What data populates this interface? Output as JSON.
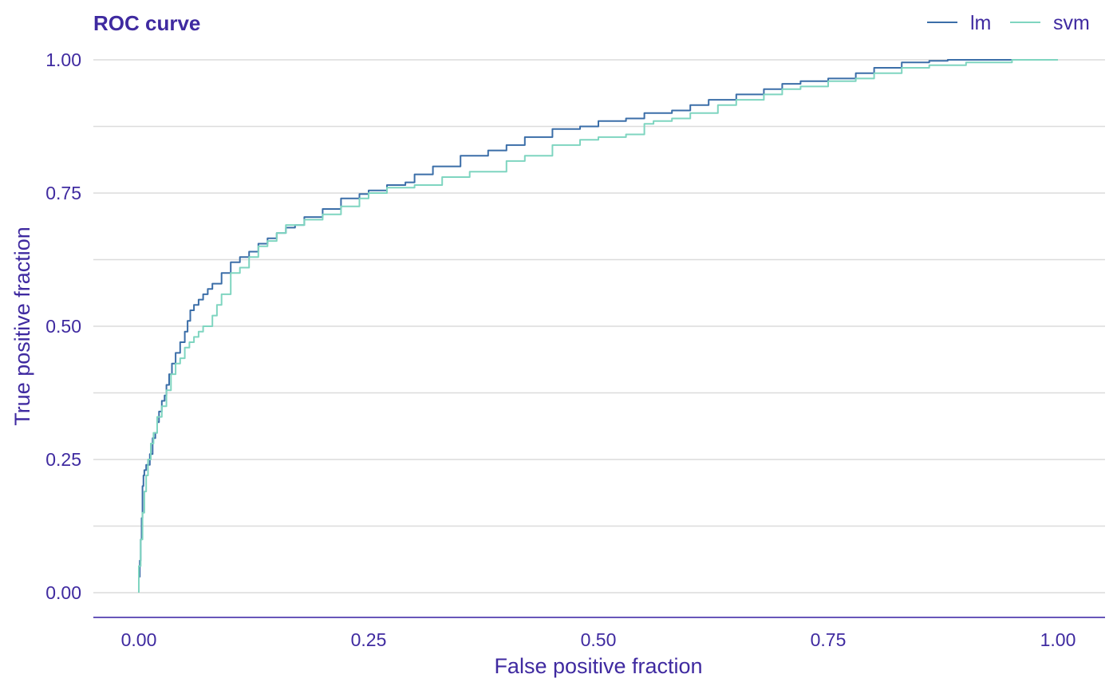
{
  "chart_data": {
    "type": "line",
    "title": "ROC curve",
    "xlabel": "False positive fraction",
    "ylabel": "True positive fraction",
    "xlim": [
      -0.1,
      1.05
    ],
    "ylim": [
      -0.05,
      1.0
    ],
    "x_ticks": [
      0,
      0.25,
      0.5,
      0.75,
      1.0
    ],
    "x_tick_labels": [
      "0.00",
      "0.25",
      "0.50",
      "0.75",
      "1.00"
    ],
    "y_ticks": [
      0,
      0.25,
      0.5,
      0.75,
      1.0
    ],
    "y_tick_labels": [
      "0.00",
      "0.25",
      "0.50",
      "0.75",
      "1.00"
    ],
    "y_minor_grid": [
      0.125,
      0.375,
      0.625,
      0.875
    ],
    "grid": true,
    "legend_position": "top-right",
    "colors": {
      "text": "#3f2aa0",
      "grid": "#dcdcdc",
      "axis": "#371ea3"
    },
    "series": [
      {
        "name": "lm",
        "color": "#3b6ea8",
        "points": [
          [
            0.0,
            0.0
          ],
          [
            0.001,
            0.03
          ],
          [
            0.002,
            0.06
          ],
          [
            0.003,
            0.1
          ],
          [
            0.004,
            0.14
          ],
          [
            0.005,
            0.2
          ],
          [
            0.006,
            0.22
          ],
          [
            0.008,
            0.23
          ],
          [
            0.012,
            0.24
          ],
          [
            0.015,
            0.26
          ],
          [
            0.018,
            0.29
          ],
          [
            0.02,
            0.3
          ],
          [
            0.022,
            0.32
          ],
          [
            0.025,
            0.34
          ],
          [
            0.028,
            0.36
          ],
          [
            0.03,
            0.37
          ],
          [
            0.033,
            0.39
          ],
          [
            0.036,
            0.41
          ],
          [
            0.04,
            0.43
          ],
          [
            0.045,
            0.45
          ],
          [
            0.05,
            0.47
          ],
          [
            0.053,
            0.49
          ],
          [
            0.056,
            0.51
          ],
          [
            0.06,
            0.53
          ],
          [
            0.065,
            0.54
          ],
          [
            0.07,
            0.55
          ],
          [
            0.075,
            0.56
          ],
          [
            0.08,
            0.57
          ],
          [
            0.09,
            0.58
          ],
          [
            0.1,
            0.6
          ],
          [
            0.11,
            0.62
          ],
          [
            0.12,
            0.63
          ],
          [
            0.13,
            0.64
          ],
          [
            0.14,
            0.655
          ],
          [
            0.15,
            0.665
          ],
          [
            0.16,
            0.675
          ],
          [
            0.17,
            0.685
          ],
          [
            0.18,
            0.69
          ],
          [
            0.2,
            0.705
          ],
          [
            0.22,
            0.72
          ],
          [
            0.24,
            0.74
          ],
          [
            0.25,
            0.748
          ],
          [
            0.27,
            0.755
          ],
          [
            0.29,
            0.765
          ],
          [
            0.3,
            0.77
          ],
          [
            0.32,
            0.785
          ],
          [
            0.35,
            0.8
          ],
          [
            0.38,
            0.82
          ],
          [
            0.4,
            0.83
          ],
          [
            0.42,
            0.84
          ],
          [
            0.45,
            0.855
          ],
          [
            0.48,
            0.87
          ],
          [
            0.5,
            0.875
          ],
          [
            0.53,
            0.885
          ],
          [
            0.55,
            0.89
          ],
          [
            0.58,
            0.9
          ],
          [
            0.6,
            0.905
          ],
          [
            0.62,
            0.915
          ],
          [
            0.65,
            0.925
          ],
          [
            0.68,
            0.935
          ],
          [
            0.7,
            0.945
          ],
          [
            0.72,
            0.955
          ],
          [
            0.75,
            0.96
          ],
          [
            0.78,
            0.965
          ],
          [
            0.8,
            0.975
          ],
          [
            0.83,
            0.985
          ],
          [
            0.86,
            0.995
          ],
          [
            0.88,
            0.998
          ],
          [
            0.9,
            1.0
          ],
          [
            1.0,
            1.0
          ]
        ]
      },
      {
        "name": "svm",
        "color": "#7fd5c0",
        "points": [
          [
            0.0,
            0.0
          ],
          [
            0.002,
            0.05
          ],
          [
            0.004,
            0.1
          ],
          [
            0.006,
            0.15
          ],
          [
            0.008,
            0.19
          ],
          [
            0.01,
            0.22
          ],
          [
            0.013,
            0.25
          ],
          [
            0.016,
            0.28
          ],
          [
            0.02,
            0.3
          ],
          [
            0.025,
            0.33
          ],
          [
            0.03,
            0.35
          ],
          [
            0.035,
            0.38
          ],
          [
            0.04,
            0.41
          ],
          [
            0.045,
            0.43
          ],
          [
            0.05,
            0.44
          ],
          [
            0.055,
            0.46
          ],
          [
            0.06,
            0.47
          ],
          [
            0.065,
            0.48
          ],
          [
            0.07,
            0.49
          ],
          [
            0.08,
            0.5
          ],
          [
            0.085,
            0.52
          ],
          [
            0.09,
            0.54
          ],
          [
            0.1,
            0.56
          ],
          [
            0.11,
            0.6
          ],
          [
            0.12,
            0.61
          ],
          [
            0.13,
            0.63
          ],
          [
            0.14,
            0.65
          ],
          [
            0.15,
            0.66
          ],
          [
            0.16,
            0.675
          ],
          [
            0.18,
            0.69
          ],
          [
            0.2,
            0.7
          ],
          [
            0.22,
            0.71
          ],
          [
            0.24,
            0.725
          ],
          [
            0.25,
            0.74
          ],
          [
            0.27,
            0.75
          ],
          [
            0.3,
            0.76
          ],
          [
            0.33,
            0.765
          ],
          [
            0.36,
            0.78
          ],
          [
            0.4,
            0.79
          ],
          [
            0.42,
            0.81
          ],
          [
            0.45,
            0.82
          ],
          [
            0.48,
            0.84
          ],
          [
            0.5,
            0.85
          ],
          [
            0.53,
            0.855
          ],
          [
            0.55,
            0.86
          ],
          [
            0.56,
            0.88
          ],
          [
            0.58,
            0.885
          ],
          [
            0.6,
            0.89
          ],
          [
            0.63,
            0.9
          ],
          [
            0.65,
            0.915
          ],
          [
            0.68,
            0.925
          ],
          [
            0.7,
            0.935
          ],
          [
            0.72,
            0.945
          ],
          [
            0.75,
            0.95
          ],
          [
            0.78,
            0.96
          ],
          [
            0.8,
            0.965
          ],
          [
            0.83,
            0.975
          ],
          [
            0.86,
            0.985
          ],
          [
            0.9,
            0.99
          ],
          [
            0.95,
            0.995
          ],
          [
            1.0,
            1.0
          ]
        ]
      }
    ]
  }
}
